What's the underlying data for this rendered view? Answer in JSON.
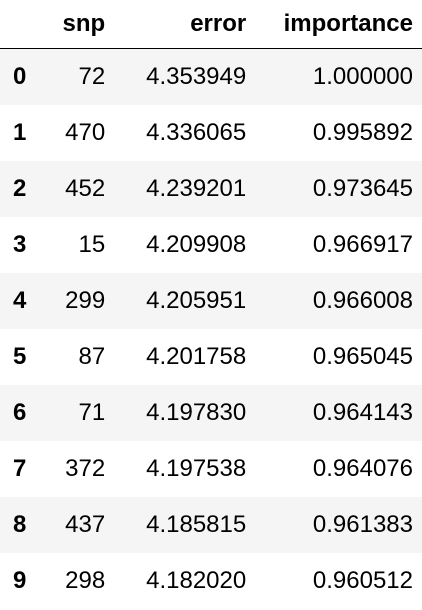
{
  "table": {
    "columns": [
      "",
      "snp",
      "error",
      "importance"
    ],
    "rows": [
      {
        "index": "0",
        "snp": "72",
        "error": "4.353949",
        "importance": "1.000000"
      },
      {
        "index": "1",
        "snp": "470",
        "error": "4.336065",
        "importance": "0.995892"
      },
      {
        "index": "2",
        "snp": "452",
        "error": "4.239201",
        "importance": "0.973645"
      },
      {
        "index": "3",
        "snp": "15",
        "error": "4.209908",
        "importance": "0.966917"
      },
      {
        "index": "4",
        "snp": "299",
        "error": "4.205951",
        "importance": "0.966008"
      },
      {
        "index": "5",
        "snp": "87",
        "error": "4.201758",
        "importance": "0.965045"
      },
      {
        "index": "6",
        "snp": "71",
        "error": "4.197830",
        "importance": "0.964143"
      },
      {
        "index": "7",
        "snp": "372",
        "error": "4.197538",
        "importance": "0.964076"
      },
      {
        "index": "8",
        "snp": "437",
        "error": "4.185815",
        "importance": "0.961383"
      },
      {
        "index": "9",
        "snp": "298",
        "error": "4.182020",
        "importance": "0.960512"
      }
    ]
  }
}
